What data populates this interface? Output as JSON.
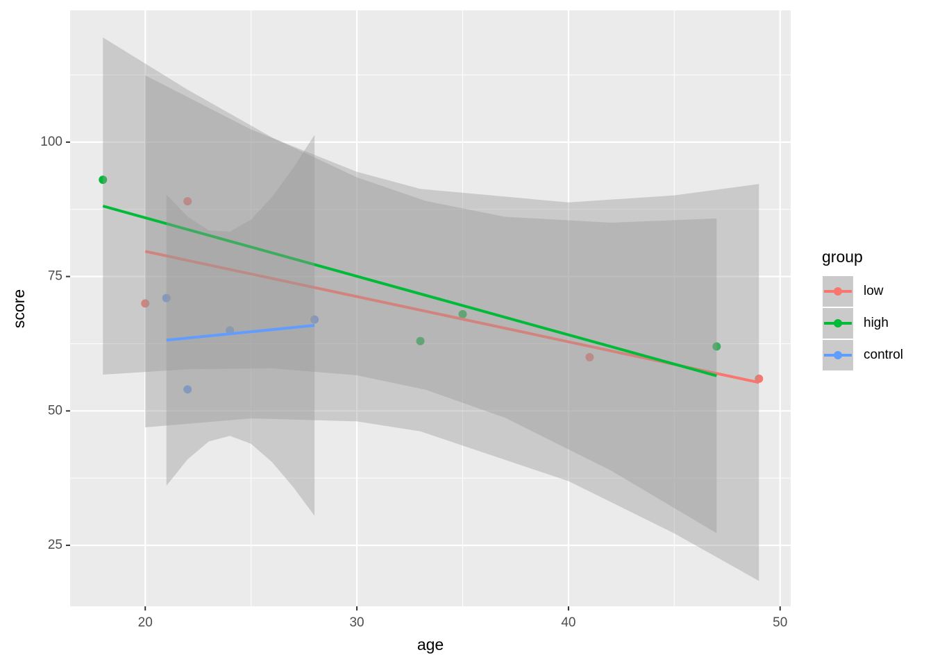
{
  "chart_data": {
    "type": "scatter",
    "x_label": "age",
    "y_label": "score",
    "xlim": [
      16.45,
      50.5
    ],
    "ylim": [
      13.65,
      124.5
    ],
    "xticks": [
      20,
      30,
      40,
      50
    ],
    "yticks": [
      25,
      50,
      75,
      100
    ],
    "x_minor_ticks": [
      25,
      35,
      45
    ],
    "y_minor_ticks": [
      37.5,
      62.5,
      87.5,
      112.5
    ],
    "grid": true,
    "legend_title": "group",
    "legend_position": "right",
    "band_color": "#999999",
    "series": [
      {
        "name": "low",
        "color": "#F8766D",
        "x": [
          20,
          22,
          41,
          49
        ],
        "values": [
          70,
          89,
          60,
          56
        ],
        "fit": {
          "x": [
            20,
            49
          ],
          "values": [
            79.68,
            55.29
          ]
        },
        "band": {
          "x": [
            20,
            25,
            30,
            33,
            40,
            45,
            49
          ],
          "lower": [
            46.94,
            48.61,
            48.06,
            46.2,
            36.94,
            27.22,
            18.38
          ],
          "upper": [
            112.42,
            102.35,
            94.48,
            91.3,
            88.78,
            90.1,
            92.2
          ]
        }
      },
      {
        "name": "high",
        "color": "#00BA38",
        "x": [
          18,
          33,
          35,
          47
        ],
        "values": [
          93,
          63,
          68,
          62
        ],
        "fit": {
          "x": [
            18,
            47
          ],
          "values": [
            88.11,
            56.53
          ]
        },
        "band": {
          "x": [
            18,
            22,
            26,
            30,
            33.25,
            37,
            42,
            47
          ],
          "lower": [
            56.75,
            57.75,
            57.92,
            56.63,
            53.94,
            48.73,
            38.93,
            27.25
          ],
          "upper": [
            119.47,
            109.75,
            100.86,
            93.45,
            89.06,
            86.11,
            85.01,
            85.81
          ]
        }
      },
      {
        "name": "control",
        "color": "#619CFF",
        "x": [
          21,
          22,
          24,
          28
        ],
        "values": [
          71,
          54,
          65,
          67
        ],
        "fit": {
          "x": [
            21,
            28
          ],
          "values": [
            63.17,
            65.91
          ]
        },
        "band": {
          "x": [
            21,
            22,
            23,
            24,
            25,
            26,
            27,
            28
          ],
          "lower": [
            36.08,
            40.99,
            44.32,
            45.36,
            43.88,
            40.44,
            35.8,
            30.47
          ],
          "upper": [
            90.26,
            86.15,
            83.6,
            83.34,
            85.6,
            89.82,
            95.24,
            101.35
          ]
        }
      }
    ]
  }
}
